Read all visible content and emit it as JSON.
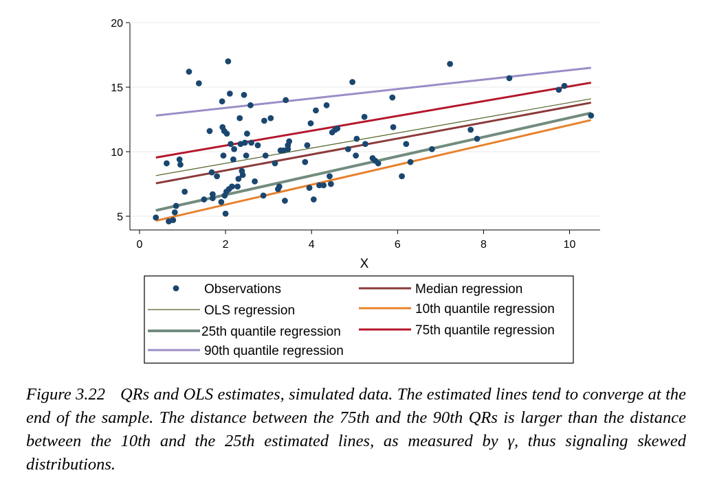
{
  "chart_data": {
    "type": "scatter",
    "xlabel": "X",
    "ylabel": "",
    "xlim": [
      0,
      10.7
    ],
    "ylim": [
      4,
      20
    ],
    "xticks": [
      0,
      2,
      4,
      6,
      8,
      10
    ],
    "yticks": [
      5,
      10,
      15,
      20
    ],
    "grid": "horizontal",
    "legend_position": "bottom",
    "series": [
      {
        "name": "Observations",
        "type": "scatter",
        "color": "#1a476f",
        "points": [
          [
            0.38,
            4.9
          ],
          [
            0.63,
            9.1
          ],
          [
            0.68,
            4.6
          ],
          [
            0.78,
            4.7
          ],
          [
            0.82,
            5.3
          ],
          [
            0.85,
            5.8
          ],
          [
            0.93,
            9.4
          ],
          [
            0.95,
            9.0
          ],
          [
            1.05,
            6.9
          ],
          [
            1.15,
            16.2
          ],
          [
            1.38,
            15.3
          ],
          [
            1.5,
            6.3
          ],
          [
            1.63,
            11.6
          ],
          [
            1.68,
            8.4
          ],
          [
            1.7,
            6.7
          ],
          [
            1.7,
            6.4
          ],
          [
            1.8,
            8.1
          ],
          [
            1.9,
            6.1
          ],
          [
            1.92,
            13.9
          ],
          [
            1.93,
            11.9
          ],
          [
            1.95,
            9.7
          ],
          [
            1.97,
            11.6
          ],
          [
            1.98,
            6.6
          ],
          [
            2.0,
            5.2
          ],
          [
            2.02,
            6.9
          ],
          [
            2.03,
            11.4
          ],
          [
            2.06,
            17.0
          ],
          [
            2.08,
            7.1
          ],
          [
            2.1,
            14.5
          ],
          [
            2.12,
            10.6
          ],
          [
            2.15,
            7.3
          ],
          [
            2.18,
            9.4
          ],
          [
            2.2,
            10.2
          ],
          [
            2.28,
            7.3
          ],
          [
            2.3,
            7.9
          ],
          [
            2.33,
            12.6
          ],
          [
            2.35,
            10.6
          ],
          [
            2.38,
            8.5
          ],
          [
            2.4,
            8.2
          ],
          [
            2.43,
            14.4
          ],
          [
            2.45,
            10.7
          ],
          [
            2.48,
            9.7
          ],
          [
            2.5,
            11.4
          ],
          [
            2.58,
            13.6
          ],
          [
            2.6,
            10.7
          ],
          [
            2.68,
            7.7
          ],
          [
            2.75,
            10.5
          ],
          [
            2.88,
            6.6
          ],
          [
            2.9,
            12.4
          ],
          [
            2.93,
            9.7
          ],
          [
            3.05,
            12.6
          ],
          [
            3.15,
            9.1
          ],
          [
            3.22,
            7.1
          ],
          [
            3.25,
            7.3
          ],
          [
            3.28,
            10.1
          ],
          [
            3.35,
            10.1
          ],
          [
            3.38,
            6.2
          ],
          [
            3.4,
            14.0
          ],
          [
            3.45,
            10.2
          ],
          [
            3.45,
            10.5
          ],
          [
            3.48,
            10.8
          ],
          [
            3.85,
            9.2
          ],
          [
            3.9,
            10.5
          ],
          [
            3.95,
            7.2
          ],
          [
            3.98,
            12.2
          ],
          [
            4.05,
            6.3
          ],
          [
            4.1,
            13.2
          ],
          [
            4.18,
            7.4
          ],
          [
            4.28,
            7.4
          ],
          [
            4.35,
            13.6
          ],
          [
            4.42,
            8.1
          ],
          [
            4.45,
            7.5
          ],
          [
            4.48,
            11.5
          ],
          [
            4.55,
            11.7
          ],
          [
            4.6,
            11.8
          ],
          [
            4.85,
            10.2
          ],
          [
            4.95,
            15.4
          ],
          [
            5.03,
            9.7
          ],
          [
            5.05,
            11.0
          ],
          [
            5.23,
            12.7
          ],
          [
            5.25,
            10.6
          ],
          [
            5.42,
            9.5
          ],
          [
            5.48,
            9.3
          ],
          [
            5.55,
            9.1
          ],
          [
            5.88,
            14.2
          ],
          [
            5.9,
            11.9
          ],
          [
            6.1,
            8.1
          ],
          [
            6.2,
            10.6
          ],
          [
            6.3,
            9.2
          ],
          [
            6.8,
            10.2
          ],
          [
            7.22,
            16.8
          ],
          [
            7.7,
            11.7
          ],
          [
            7.85,
            11.0
          ],
          [
            8.6,
            15.7
          ],
          [
            9.75,
            14.8
          ],
          [
            9.88,
            15.1
          ],
          [
            10.5,
            12.8
          ]
        ]
      },
      {
        "name": "OLS regression",
        "type": "line",
        "color": "#4f6228",
        "width": 1.2,
        "x": [
          0.38,
          10.5
        ],
        "y": [
          8.15,
          14.1
        ]
      },
      {
        "name": "25th quantile regression",
        "type": "line",
        "color": "#728c7e",
        "width": 4,
        "x": [
          0.38,
          10.5
        ],
        "y": [
          5.45,
          13.0
        ]
      },
      {
        "name": "90th quantile regression",
        "type": "line",
        "color": "#9b8dc7",
        "width": 3,
        "x": [
          0.38,
          10.5
        ],
        "y": [
          12.8,
          16.5
        ]
      },
      {
        "name": "Median regression",
        "type": "line",
        "color": "#8b3a3a",
        "width": 3,
        "x": [
          0.38,
          10.5
        ],
        "y": [
          7.55,
          13.8
        ]
      },
      {
        "name": "10th quantile regression",
        "type": "line",
        "color": "#e8812b",
        "width": 3,
        "x": [
          0.38,
          10.5
        ],
        "y": [
          4.65,
          12.45
        ]
      },
      {
        "name": "75th quantile regression",
        "type": "line",
        "color": "#b5162b",
        "width": 3,
        "x": [
          0.38,
          10.5
        ],
        "y": [
          9.55,
          15.35
        ]
      }
    ]
  },
  "legend": [
    {
      "label": "Observations",
      "kind": "marker",
      "color": "#1a476f"
    },
    {
      "label": "Median regression",
      "kind": "line",
      "color": "#8b3a3a",
      "width": 3
    },
    {
      "label": "OLS regression",
      "kind": "line",
      "color": "#4f6228",
      "width": 1.2
    },
    {
      "label": "10th quantile regression",
      "kind": "line",
      "color": "#e8812b",
      "width": 3
    },
    {
      "label": "25th quantile regression",
      "kind": "line",
      "color": "#728c7e",
      "width": 4
    },
    {
      "label": "75th quantile regression",
      "kind": "line",
      "color": "#b5162b",
      "width": 3
    },
    {
      "label": "90th quantile regression",
      "kind": "line",
      "color": "#9b8dc7",
      "width": 3
    }
  ],
  "caption": {
    "figure_number": "Figure 3.22",
    "text": "QRs and OLS estimates, simulated data. The estimated lines tend to converge at the end of the sample. The distance between the 75th and the 90th QRs is larger than the distance between the 10th and the 25th estimated lines, as measured by γ, thus signaling skewed distributions."
  }
}
